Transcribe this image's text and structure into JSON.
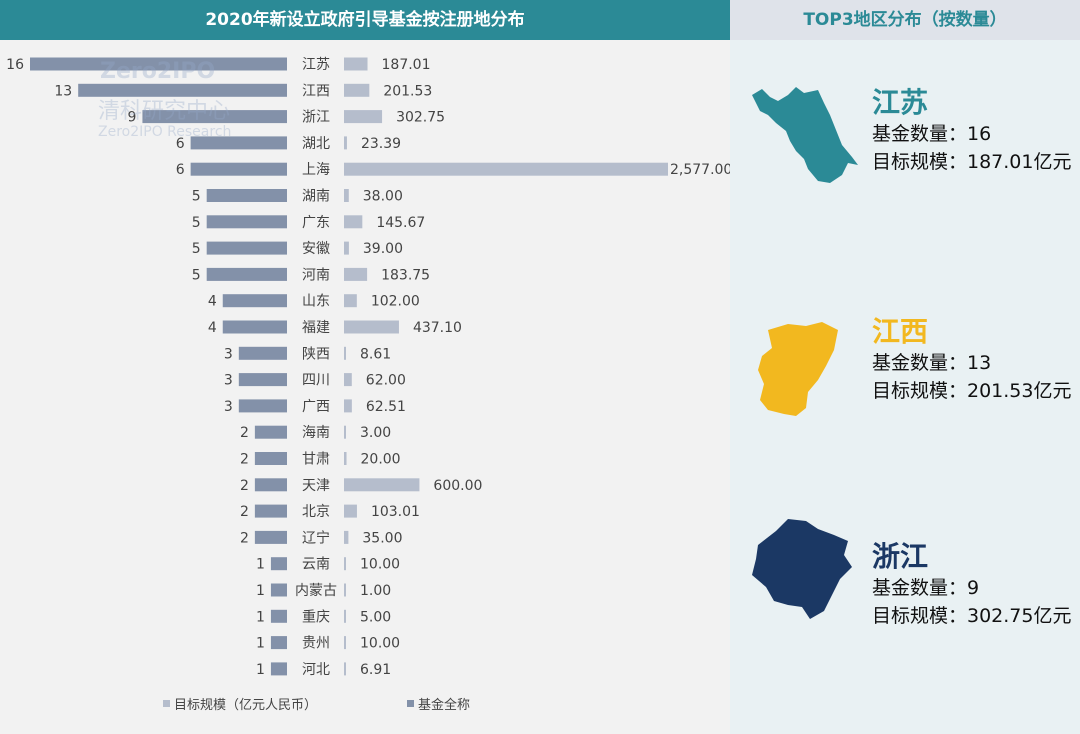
{
  "header": {
    "left_title": "2020年新设立政府引导基金按注册地分布",
    "right_title": "TOP3地区分布（按数量）"
  },
  "watermark": {
    "brand": "Zero2IPO",
    "cn": "清科研究中心",
    "en": "Zero2IPO Research"
  },
  "chart_data": {
    "type": "bar",
    "title": "2020年新设立政府引导基金按注册地分布",
    "categories": [
      "江苏",
      "江西",
      "浙江",
      "湖北",
      "上海",
      "湖南",
      "广东",
      "安徽",
      "河南",
      "山东",
      "福建",
      "陕西",
      "四川",
      "广西",
      "海南",
      "甘肃",
      "天津",
      "北京",
      "辽宁",
      "云南",
      "内蒙古",
      "重庆",
      "贵州",
      "河北"
    ],
    "series": [
      {
        "name": "基金全称",
        "color": "#8391a9",
        "values": [
          16,
          13,
          9,
          6,
          6,
          5,
          5,
          5,
          5,
          4,
          4,
          3,
          3,
          3,
          2,
          2,
          2,
          2,
          2,
          1,
          1,
          1,
          1,
          1
        ]
      },
      {
        "name": "目标规模（亿元人民币）",
        "color": "#b5bdcc",
        "values": [
          187.01,
          201.53,
          302.75,
          23.39,
          2577.0,
          38.0,
          145.67,
          39.0,
          183.75,
          102.0,
          437.1,
          8.61,
          62.0,
          62.51,
          3.0,
          20.0,
          600.0,
          103.01,
          35.0,
          10.0,
          1.0,
          5.0,
          10.0,
          6.91
        ]
      }
    ],
    "value_labels": [
      "187.01",
      "201.53",
      "302.75",
      "23.39",
      "2,577.00",
      "38.00",
      "145.67",
      "39.00",
      "183.75",
      "102.00",
      "437.10",
      "8.61",
      "62.00",
      "62.51",
      "3.00",
      "20.00",
      "600.00",
      "103.01",
      "35.00",
      "10.00",
      "1.00",
      "5.00",
      "10.00",
      "6.91"
    ],
    "legend": [
      "目标规模（亿元人民币）",
      "基金全称"
    ],
    "legend_position": "bottom"
  },
  "top3": [
    {
      "name": "江苏",
      "color": "#2b8a96",
      "count_label": "基金数量：16",
      "scale_label": "目标规模：187.01亿元"
    },
    {
      "name": "江西",
      "color": "#f2b81f",
      "count_label": "基金数量：13",
      "scale_label": "目标规模：201.53亿元"
    },
    {
      "name": "浙江",
      "color": "#1b3864",
      "count_label": "基金数量：9",
      "scale_label": "目标规模：302.75亿元"
    }
  ]
}
